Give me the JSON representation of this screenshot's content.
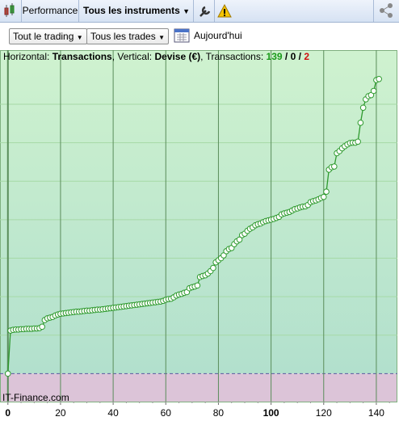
{
  "toolbar": {
    "performance": "Performance",
    "instruments": "Tous les instruments"
  },
  "filters": {
    "scope": "Tout le trading",
    "trades": "Tous les trades",
    "date": "Aujourd'hui"
  },
  "info": {
    "horizontal_label": "Horizontal:",
    "horizontal": "Transactions",
    "vertical_label": ", Vertical:",
    "vertical": "Devise (€)",
    "count_label": ", Transactions:",
    "counts": [
      139,
      0,
      2
    ],
    "separator": "/"
  },
  "watermark": "IT-Finance.com",
  "chart_data": {
    "type": "line",
    "x": [
      0,
      1,
      2,
      3,
      4,
      5,
      6,
      7,
      8,
      9,
      10,
      11,
      12,
      13,
      14,
      15,
      16,
      17,
      18,
      19,
      20,
      21,
      22,
      23,
      24,
      25,
      26,
      27,
      28,
      29,
      30,
      31,
      32,
      33,
      34,
      35,
      36,
      37,
      38,
      39,
      40,
      41,
      42,
      43,
      44,
      45,
      46,
      47,
      48,
      49,
      50,
      51,
      52,
      53,
      54,
      55,
      56,
      57,
      58,
      59,
      60,
      61,
      62,
      63,
      64,
      65,
      66,
      67,
      68,
      69,
      70,
      71,
      72,
      73,
      74,
      75,
      76,
      77,
      78,
      79,
      80,
      81,
      82,
      83,
      84,
      85,
      86,
      87,
      88,
      89,
      90,
      91,
      92,
      93,
      94,
      95,
      96,
      97,
      98,
      99,
      100,
      101,
      102,
      103,
      104,
      105,
      106,
      107,
      108,
      109,
      110,
      111,
      112,
      113,
      114,
      115,
      116,
      117,
      118,
      119,
      120,
      121,
      122,
      123,
      124,
      125,
      126,
      127,
      128,
      129,
      130,
      131,
      132,
      133,
      134,
      135,
      136,
      137,
      138,
      139,
      140,
      141
    ],
    "values": [
      0,
      12.3,
      12.5,
      12.6,
      12.6,
      12.7,
      12.7,
      12.8,
      12.8,
      12.8,
      12.9,
      12.9,
      13.0,
      13.4,
      15.3,
      15.8,
      16.0,
      16.2,
      16.6,
      16.9,
      17.1,
      17.2,
      17.3,
      17.4,
      17.5,
      17.6,
      17.7,
      17.7,
      17.8,
      17.9,
      18.0,
      18.0,
      18.1,
      18.2,
      18.3,
      18.3,
      18.4,
      18.5,
      18.6,
      18.7,
      18.8,
      18.9,
      19.0,
      19.1,
      19.2,
      19.3,
      19.4,
      19.5,
      19.6,
      19.7,
      19.8,
      19.9,
      20.0,
      20.1,
      20.2,
      20.3,
      20.4,
      20.5,
      20.6,
      20.8,
      21.1,
      21.3,
      21.4,
      21.8,
      22.3,
      22.6,
      22.8,
      23.1,
      23.3,
      24.4,
      24.7,
      24.9,
      25.2,
      27.6,
      27.9,
      28.1,
      28.6,
      29.3,
      30.2,
      31.8,
      32.4,
      33.0,
      33.8,
      35.0,
      35.6,
      35.9,
      37.0,
      37.8,
      38.3,
      39.6,
      40.0,
      40.8,
      41.4,
      41.8,
      42.4,
      42.7,
      42.9,
      43.3,
      43.6,
      43.8,
      44.0,
      44.2,
      44.5,
      44.8,
      45.5,
      45.8,
      46.0,
      46.2,
      46.6,
      47.0,
      47.2,
      47.5,
      47.7,
      47.8,
      48.2,
      49.0,
      49.3,
      49.5,
      49.8,
      50.2,
      50.5,
      52.0,
      58.3,
      59.0,
      59.2,
      63.0,
      63.6,
      64.4,
      65.0,
      65.5,
      65.9,
      66.0,
      66.0,
      66.3,
      71.7,
      76.0,
      78.4,
      79.3,
      79.6,
      80.8,
      83.9,
      84.2
    ],
    "color": "#2e9a2e",
    "xlim": [
      -3,
      148
    ],
    "xticks": [
      0,
      20,
      40,
      60,
      80,
      100,
      120,
      140
    ],
    "xticks_bold": [
      0,
      100
    ],
    "ylim": [
      -8,
      92
    ],
    "ygrid": [
      11,
      22,
      33,
      44,
      55,
      66,
      77
    ],
    "grid": true
  }
}
